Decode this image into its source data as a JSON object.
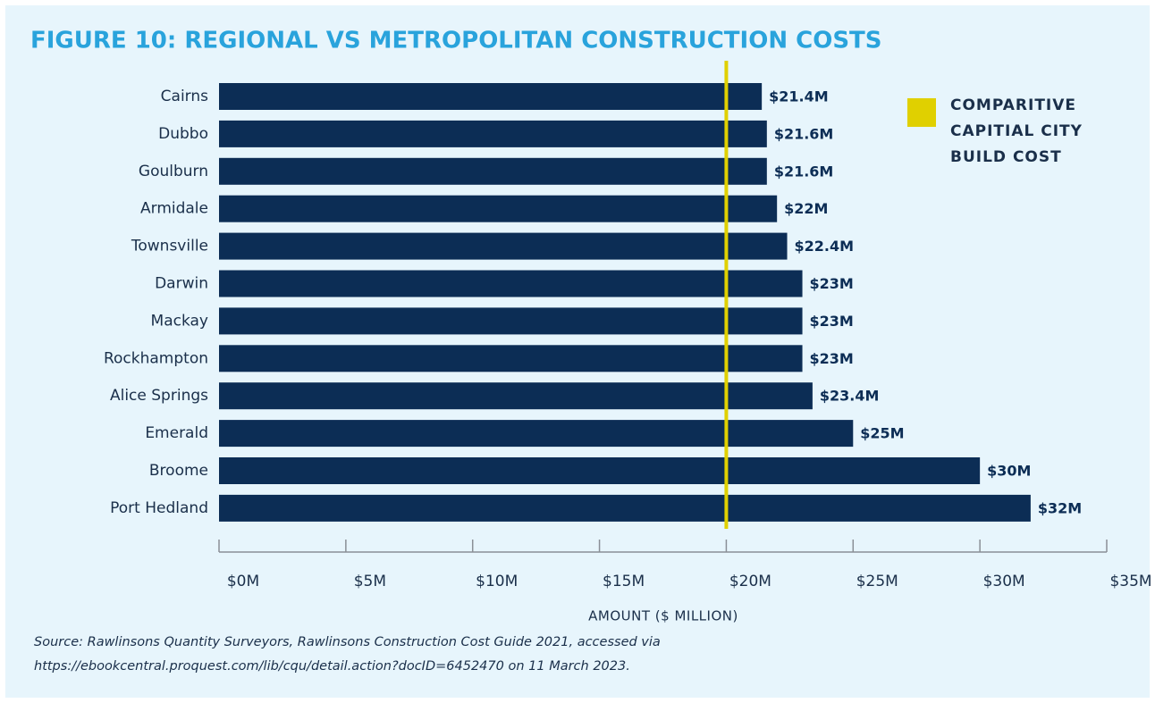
{
  "chart_data": {
    "type": "hbar",
    "title": "FIGURE 10: REGIONAL VS METROPOLITAN CONSTRUCTION COSTS",
    "categories": [
      "Cairns",
      "Dubbo",
      "Goulburn",
      "Armidale",
      "Townsville",
      "Darwin",
      "Mackay",
      "Rockhampton",
      "Alice Springs",
      "Emerald",
      "Broome",
      "Port Hedland"
    ],
    "values": [
      21.4,
      21.6,
      21.6,
      22,
      22.4,
      23,
      23,
      23,
      23.4,
      25,
      30,
      32
    ],
    "value_labels": [
      "$21.4M",
      "$21.6M",
      "$21.6M",
      "$22M",
      "$22.4M",
      "$23M",
      "$23M",
      "$23M",
      "$23.4M",
      "$25M",
      "$30M",
      "$32M"
    ],
    "color": "#0c2d55",
    "xlim": [
      0,
      35
    ],
    "xticks": [
      {
        "value": 0,
        "label": "$0M"
      },
      {
        "value": 5,
        "label": "$5M"
      },
      {
        "value": 10,
        "label": "$10M"
      },
      {
        "value": 15,
        "label": "$15M"
      },
      {
        "value": 20,
        "label": "$20M"
      },
      {
        "value": 25,
        "label": "$25M"
      },
      {
        "value": 30,
        "label": "$30M"
      },
      {
        "value": 35,
        "label": "$35M"
      }
    ],
    "xlabel": "AMOUNT ($ MILLION)",
    "reference_line": {
      "value": 20,
      "label": "COMPARITIVE CAPITIAL CITY BUILD COST",
      "color": "#e0d000"
    },
    "legend": "upper right",
    "source": [
      "Source: Rawlinsons Quantity Surveyors, Rawlinsons Construction Cost Guide 2021, accessed via",
      "https://ebookcentral.proquest.com/lib/cqu/detail.action?docID=6452470 on 11 March 2023."
    ]
  }
}
